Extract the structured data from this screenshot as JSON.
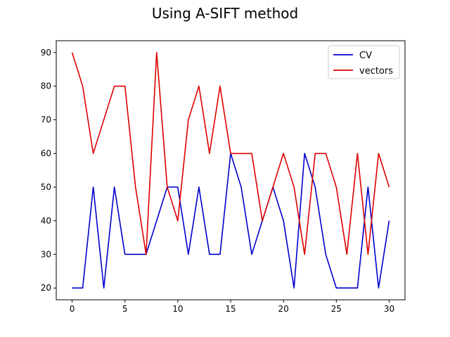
{
  "chart_data": {
    "type": "line",
    "title": "Using A-SIFT method",
    "xlabel": "",
    "ylabel": "",
    "xlim": [
      -1.5,
      31.5
    ],
    "ylim": [
      16.5,
      93.5
    ],
    "xticks": [
      0,
      5,
      10,
      15,
      20,
      25,
      30
    ],
    "yticks": [
      20,
      30,
      40,
      50,
      60,
      70,
      80,
      90
    ],
    "grid": false,
    "legend_position": "top-right",
    "x": [
      0,
      1,
      2,
      3,
      4,
      5,
      6,
      7,
      8,
      9,
      10,
      11,
      12,
      13,
      14,
      15,
      16,
      17,
      18,
      19,
      20,
      21,
      22,
      23,
      24,
      25,
      26,
      27,
      28,
      29,
      30
    ],
    "series": [
      {
        "name": "CV",
        "color": "#0000cc",
        "values": [
          20,
          20,
          50,
          20,
          50,
          30,
          30,
          30,
          40,
          50,
          50,
          30,
          50,
          30,
          30,
          60,
          50,
          30,
          40,
          50,
          40,
          20,
          60,
          50,
          30,
          20,
          20,
          20,
          50,
          20,
          40
        ]
      },
      {
        "name": "vectors",
        "color": "#dd0000",
        "values": [
          90,
          80,
          60,
          70,
          80,
          80,
          50,
          30,
          90,
          50,
          40,
          70,
          80,
          60,
          80,
          60,
          60,
          60,
          40,
          50,
          60,
          50,
          30,
          60,
          60,
          50,
          30,
          60,
          30,
          60,
          50
        ]
      }
    ]
  }
}
